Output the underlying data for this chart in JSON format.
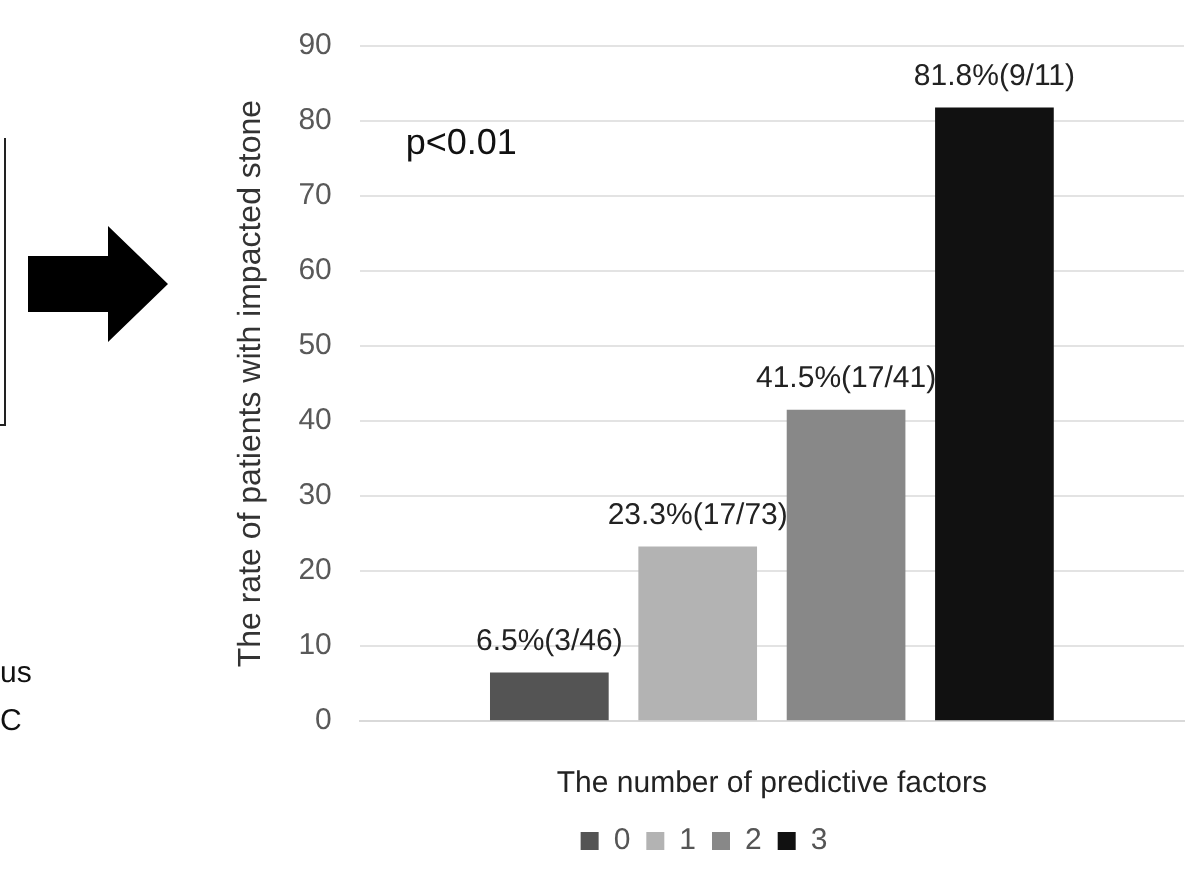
{
  "chart_data": {
    "type": "bar",
    "xlabel": "The number of predictive factors",
    "ylabel": "The rate of patients with impacted stone",
    "categories": [
      null
    ],
    "series": [
      {
        "name": "0",
        "color": "#545454",
        "values": [
          6.5
        ],
        "value_labels": [
          "6.5%(3/46)"
        ]
      },
      {
        "name": "1",
        "color": "#b3b3b3",
        "values": [
          23.3
        ],
        "value_labels": [
          "23.3%(17/73)"
        ]
      },
      {
        "name": "2",
        "color": "#888888",
        "values": [
          41.5
        ],
        "value_labels": [
          "41.5%(17/41)"
        ]
      },
      {
        "name": "3",
        "color": "#111111",
        "values": [
          81.8
        ],
        "value_labels": [
          "81.8%(9/11)"
        ]
      }
    ],
    "ylim": [
      0,
      90
    ],
    "yticks": [
      0,
      10,
      20,
      30,
      40,
      50,
      60,
      70,
      80,
      90
    ],
    "grid": "y",
    "legend": "bottom",
    "annotations": [
      "p<0.01",
      "us",
      "C"
    ]
  }
}
